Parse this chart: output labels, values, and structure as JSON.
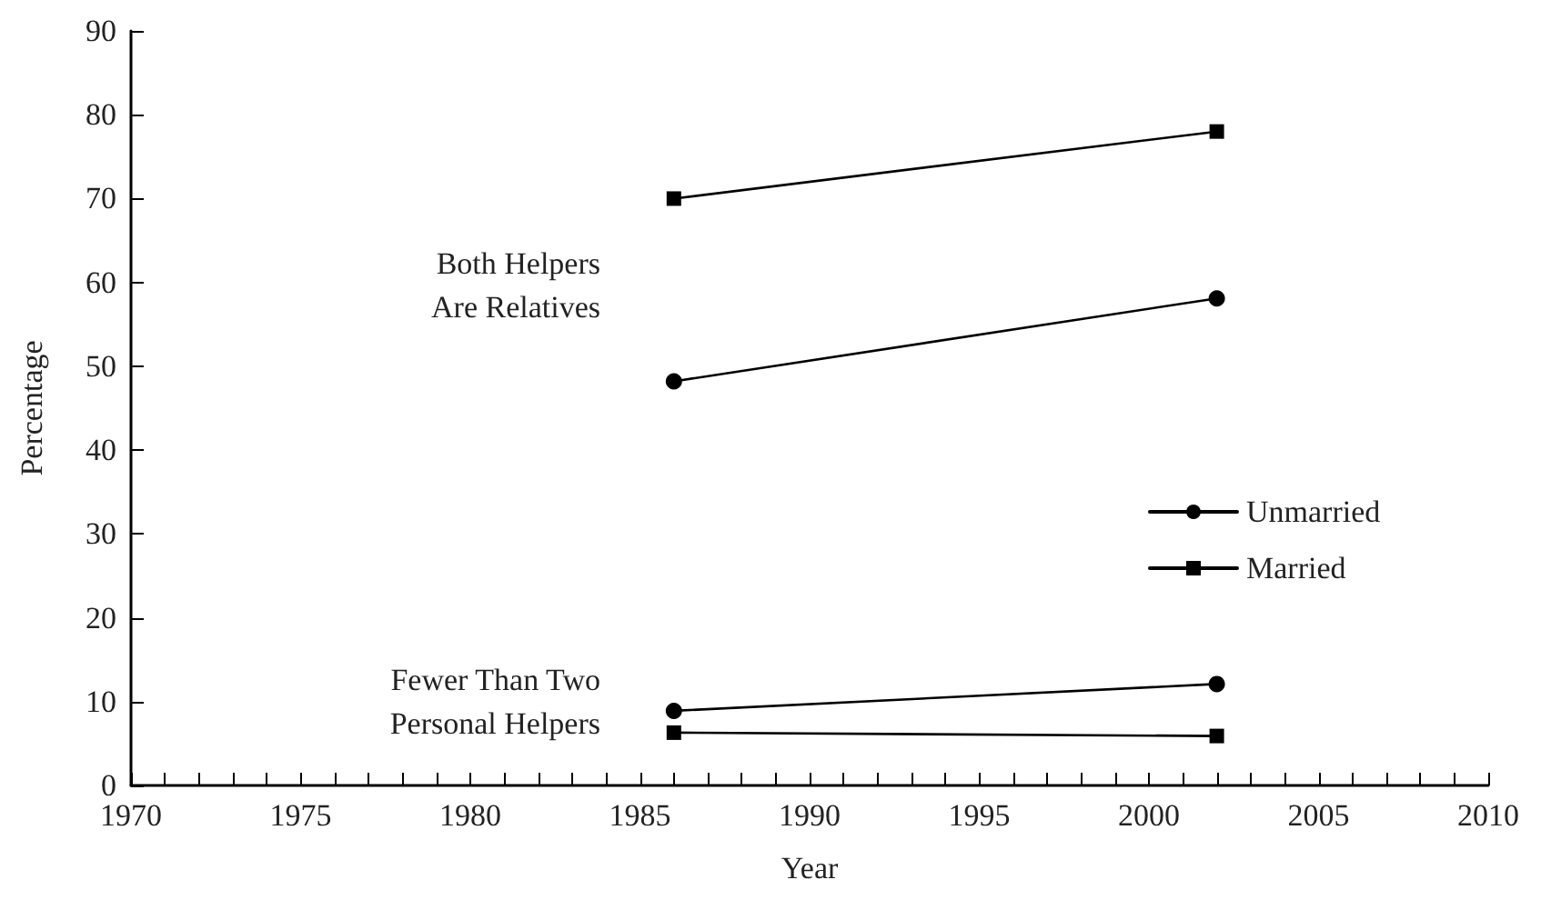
{
  "chart_data": {
    "type": "line",
    "xlabel": "Year",
    "ylabel": "Percentage",
    "xlim": [
      1970,
      2010
    ],
    "ylim": [
      0,
      90
    ],
    "xticks": [
      1970,
      {
        "value": 1971,
        "label": null
      },
      {
        "value": 1972,
        "label": null
      },
      {
        "value": 1973,
        "label": null
      },
      {
        "value": 1974,
        "label": null
      },
      1975,
      {
        "value": 1976,
        "label": null
      },
      {
        "value": 1977,
        "label": null
      },
      {
        "value": 1978,
        "label": null
      },
      {
        "value": 1979,
        "label": null
      },
      1980,
      {
        "value": 1981,
        "label": null
      },
      {
        "value": 1982,
        "label": null
      },
      {
        "value": 1983,
        "label": null
      },
      {
        "value": 1984,
        "label": null
      },
      1985,
      {
        "value": 1986,
        "label": null
      },
      {
        "value": 1987,
        "label": null
      },
      {
        "value": 1988,
        "label": null
      },
      {
        "value": 1989,
        "label": null
      },
      1990,
      {
        "value": 1991,
        "label": null
      },
      {
        "value": 1992,
        "label": null
      },
      {
        "value": 1993,
        "label": null
      },
      {
        "value": 1994,
        "label": null
      },
      1995,
      {
        "value": 1996,
        "label": null
      },
      {
        "value": 1997,
        "label": null
      },
      {
        "value": 1998,
        "label": null
      },
      {
        "value": 1999,
        "label": null
      },
      2000,
      {
        "value": 2001,
        "label": null
      },
      {
        "value": 2002,
        "label": null
      },
      {
        "value": 2003,
        "label": null
      },
      {
        "value": 2004,
        "label": null
      },
      2005,
      {
        "value": 2006,
        "label": null
      },
      {
        "value": 2007,
        "label": null
      },
      {
        "value": 2008,
        "label": null
      },
      {
        "value": 2009,
        "label": null
      },
      2010
    ],
    "yticks": [
      0,
      10,
      20,
      30,
      40,
      50,
      60,
      70,
      80,
      90
    ],
    "grid": false,
    "legend": "right",
    "line_style": "solid",
    "series": [
      {
        "name": "Unmarried",
        "color": "#000000",
        "marker": "circle",
        "values": [
          48.2,
          58.1
        ]
      },
      {
        "name": "Married",
        "color": "#000000",
        "marker": "square",
        "values": [
          70,
          78
        ]
      },
      {
        "color": "#000000",
        "marker": "circle",
        "values": [
          8.9,
          12.1
        ]
      },
      {
        "color": "#000000",
        "marker": "square",
        "values": [
          6.3,
          5.9
        ]
      }
    ],
    "x": [
      1986,
      2002
    ],
    "annotations": [
      "Both Helpers\nAre Relatives",
      "Fewer Than Two\nPersonal Helpers"
    ]
  }
}
